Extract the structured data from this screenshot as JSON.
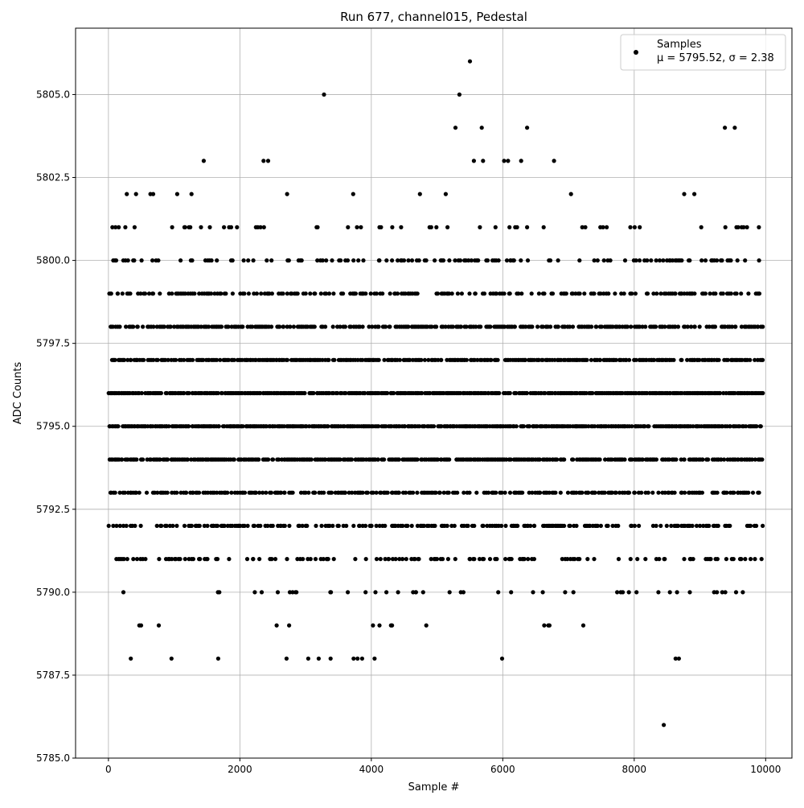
{
  "chart_data": {
    "type": "scatter",
    "title": "Run 677, channel015, Pedestal",
    "xlabel": "Sample #",
    "ylabel": "ADC Counts",
    "xlim": [
      -500,
      10400
    ],
    "ylim": [
      5785.0,
      5807.0
    ],
    "xticks": [
      0,
      2000,
      4000,
      6000,
      8000,
      10000
    ],
    "xtick_labels": [
      "0",
      "2000",
      "4000",
      "6000",
      "8000",
      "10000"
    ],
    "yticks": [
      5785.0,
      5787.5,
      5790.0,
      5792.5,
      5795.0,
      5797.5,
      5800.0,
      5802.5,
      5805.0
    ],
    "ytick_labels": [
      "5785.0",
      "5787.5",
      "5790.0",
      "5792.5",
      "5795.0",
      "5797.5",
      "5800.0",
      "5802.5",
      "5805.0"
    ],
    "grid": true,
    "legend": {
      "position": "top-right",
      "entries": [
        {
          "label": "Samples",
          "sublabel": "μ = 5795.52, σ = 2.38",
          "color": "#000000",
          "marker": "circle"
        }
      ]
    },
    "series": [
      {
        "name": "Samples",
        "color": "#000000",
        "bands": [
          {
            "y": 5793,
            "density": 0.55
          },
          {
            "y": 5794,
            "density": 0.75
          },
          {
            "y": 5795,
            "density": 0.85
          },
          {
            "y": 5796,
            "density": 0.85
          },
          {
            "y": 5797,
            "density": 0.75
          },
          {
            "y": 5798,
            "density": 0.6
          },
          {
            "y": 5799,
            "density": 0.4
          },
          {
            "y": 5792,
            "density": 0.4
          },
          {
            "y": 5800,
            "density": 0.25
          },
          {
            "y": 5791,
            "density": 0.25
          },
          {
            "y": 5801,
            "density": 0.1
          },
          {
            "y": 5790,
            "density": 0.1
          },
          {
            "y": 5802,
            "density": 0.03
          },
          {
            "y": 5789,
            "density": 0.03
          }
        ],
        "points": [
          [
            1450,
            5803
          ],
          [
            2360,
            5803
          ],
          [
            2430,
            5803
          ],
          [
            3280,
            5805
          ],
          [
            5340,
            5805
          ],
          [
            5500,
            5806
          ],
          [
            5280,
            5804
          ],
          [
            5680,
            5804
          ],
          [
            6370,
            5804
          ],
          [
            9380,
            5804
          ],
          [
            9530,
            5804
          ],
          [
            5560,
            5803
          ],
          [
            5700,
            5803
          ],
          [
            6020,
            5803
          ],
          [
            6080,
            5803
          ],
          [
            6280,
            5803
          ],
          [
            6780,
            5803
          ],
          [
            340,
            5788
          ],
          [
            960,
            5788
          ],
          [
            1670,
            5788
          ],
          [
            2710,
            5788
          ],
          [
            3040,
            5788
          ],
          [
            3200,
            5788
          ],
          [
            3380,
            5788
          ],
          [
            3730,
            5788
          ],
          [
            3790,
            5788
          ],
          [
            3860,
            5788
          ],
          [
            4050,
            5788
          ],
          [
            5990,
            5788
          ],
          [
            8630,
            5788
          ],
          [
            8680,
            5788
          ],
          [
            8450,
            5786
          ]
        ]
      }
    ]
  }
}
